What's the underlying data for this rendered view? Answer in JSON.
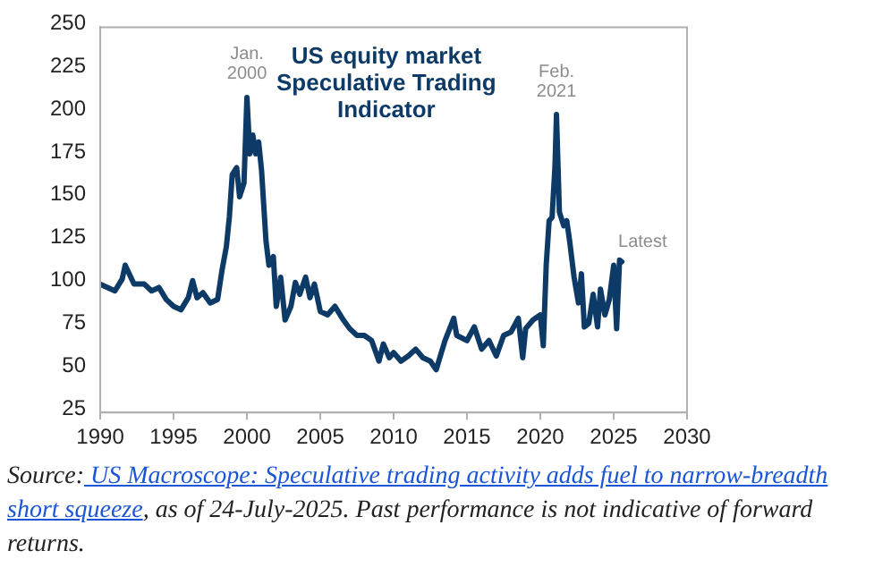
{
  "chart_data": {
    "type": "line",
    "title": "US equity market Speculative Trading Indicator",
    "x": [
      1990,
      1990.5,
      1991,
      1991.5,
      1991.7,
      1992.3,
      1993,
      1993.5,
      1994,
      1994.5,
      1995,
      1995.5,
      1996,
      1996.3,
      1996.6,
      1997,
      1997.5,
      1998,
      1998.3,
      1998.6,
      1998.8,
      1999,
      1999.3,
      1999.5,
      1999.8,
      2000,
      2000.2,
      2000.4,
      2000.6,
      2000.8,
      2001,
      2001.3,
      2001.5,
      2001.8,
      2002,
      2002.3,
      2002.6,
      2003,
      2003.3,
      2003.6,
      2004,
      2004.3,
      2004.6,
      2005,
      2005.5,
      2006,
      2006.5,
      2007,
      2007.5,
      2008,
      2008.5,
      2009,
      2009.3,
      2009.7,
      2010,
      2010.5,
      2011,
      2011.5,
      2012,
      2012.5,
      2012.9,
      2013.5,
      2014.1,
      2014.3,
      2015,
      2015.5,
      2016,
      2016.5,
      2017,
      2017.5,
      2018,
      2018.5,
      2018.8,
      2019,
      2019.5,
      2020,
      2020.2,
      2020.4,
      2020.6,
      2020.8,
      2021,
      2021.1,
      2021.3,
      2021.6,
      2021.8,
      2022,
      2022.3,
      2022.6,
      2022.8,
      2023,
      2023.3,
      2023.6,
      2023.9,
      2024.1,
      2024.4,
      2024.7,
      2025,
      2025.2,
      2025.4,
      2025.55
    ],
    "series": [
      {
        "color": "#0d3a66",
        "values": [
          100,
          98,
          96,
          103,
          111,
          100,
          100,
          96,
          98,
          91,
          87,
          85,
          92,
          102,
          92,
          95,
          89,
          91,
          108,
          122,
          139,
          164,
          168,
          151,
          159,
          209,
          176,
          187,
          176,
          183,
          166,
          125,
          111,
          116,
          87,
          104,
          79,
          87,
          101,
          94,
          104,
          92,
          100,
          84,
          82,
          87,
          80,
          74,
          70,
          70,
          67,
          55,
          65,
          57,
          60,
          55,
          58,
          62,
          57,
          55,
          50,
          67,
          80,
          70,
          67,
          75,
          62,
          67,
          58,
          70,
          72,
          80,
          57,
          74,
          79,
          82,
          64,
          111,
          137,
          139,
          169,
          199,
          142,
          134,
          137,
          125,
          104,
          89,
          106,
          75,
          77,
          94,
          75,
          97,
          82,
          91,
          111,
          74,
          114,
          113
        ]
      }
    ],
    "xlim": [
      1990,
      2030
    ],
    "xticks": [
      1990,
      1995,
      2000,
      2005,
      2010,
      2015,
      2020,
      2025,
      2030
    ],
    "ylim": [
      25,
      250
    ],
    "yticks": [
      25,
      50,
      75,
      100,
      125,
      150,
      175,
      200,
      225,
      250
    ],
    "grid": false,
    "legend": false,
    "marker": "none",
    "line_style": "solid",
    "annotations": [
      {
        "text": "Jan. 2000",
        "x": 2000,
        "y": 209
      },
      {
        "text": "Feb. 2021",
        "x": 2021.1,
        "y": 199
      },
      {
        "text": "Latest",
        "x": 2025.55,
        "y": 113
      },
      "Source:",
      "US Macroscope: Speculative trading activity adds fuel to narrow-breadth short squeeze",
      ", as of 24-July-2025. Past performance is not indicative of forward returns."
    ]
  }
}
